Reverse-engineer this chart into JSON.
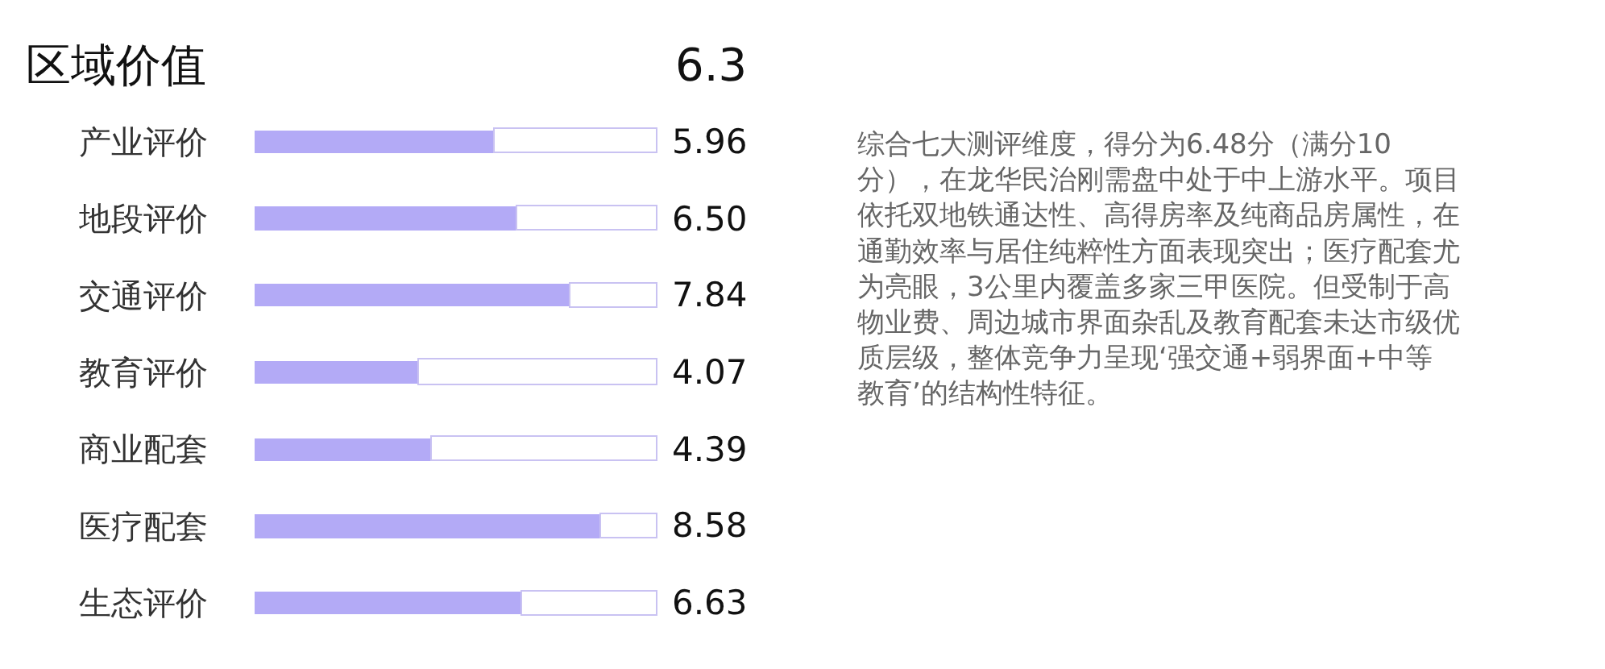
{
  "chart_data": {
    "type": "bar",
    "orientation": "horizontal",
    "title": "区域价值",
    "categories": [
      "产业评价",
      "地段评价",
      "交通评价",
      "教育评价",
      "商业配套",
      "医疗配套",
      "生态评价"
    ],
    "series": [
      {
        "color": "#b3aaf6",
        "values": [
          5.96,
          6.5,
          7.84,
          4.07,
          4.39,
          8.58,
          6.63
        ],
        "value_labels": [
          "5.96",
          "6.50",
          "7.84",
          "4.07",
          "4.39",
          "8.58",
          "6.63"
        ]
      },
      {
        "color": "#c9c2f2",
        "values": [
          4.04,
          3.5,
          2.16,
          5.93,
          5.61,
          1.42,
          3.37
        ]
      }
    ],
    "stacked": true,
    "xlim": [
      0,
      10
    ],
    "tick_labels": "y",
    "legend": false,
    "annotations": [
      "6.3",
      "综合七大测评维度，得分为6.48分（满分10分），在龙华民治刚需盘中处于中上游水平。项目依托双地铁通达性、高得房率及纯商品房属性，在通勤效率与居住纯粹性方面表现突出；医疗配套尤为亮眼，3公里内覆盖多家三甲医院。但受制于高物业费、周边城市界面杂乱及教育配套未达市级优质层级，整体竞争力呈现‘强交通+弱界面+中等教育’的结构性特征。"
    ]
  }
}
